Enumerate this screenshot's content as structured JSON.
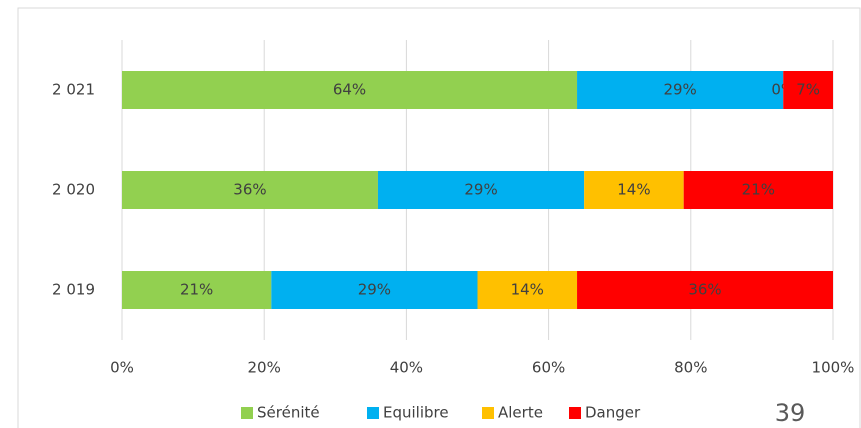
{
  "chart_data": {
    "type": "stacked_bar_horizontal",
    "categories": [
      "2 021",
      "2 020",
      "2 019"
    ],
    "series": [
      {
        "name": "Sérénité",
        "color": "#92d050",
        "values": [
          64,
          36,
          21
        ],
        "value_labels": [
          "64%",
          "36%",
          "21%"
        ]
      },
      {
        "name": "Equilibre",
        "color": "#00b0f0",
        "values": [
          29,
          29,
          29
        ],
        "value_labels": [
          "29%",
          "29%",
          "29%"
        ]
      },
      {
        "name": "Alerte",
        "color": "#ffc000",
        "values": [
          0,
          14,
          14
        ],
        "value_labels": [
          "0%",
          "14%",
          "14%"
        ]
      },
      {
        "name": "Danger",
        "color": "#ff0000",
        "values": [
          7,
          21,
          36
        ],
        "value_labels": [
          "7%",
          "21%",
          "36%"
        ]
      }
    ],
    "xlim": [
      0,
      100
    ],
    "xticks": [
      {
        "value": 0,
        "label": "0%"
      },
      {
        "value": 20,
        "label": "20%"
      },
      {
        "value": 40,
        "label": "40%"
      },
      {
        "value": 60,
        "label": "60%"
      },
      {
        "value": 80,
        "label": "80%"
      },
      {
        "value": 100,
        "label": "100%"
      }
    ],
    "grid": true,
    "legend": "bottom"
  },
  "page_number": "39"
}
